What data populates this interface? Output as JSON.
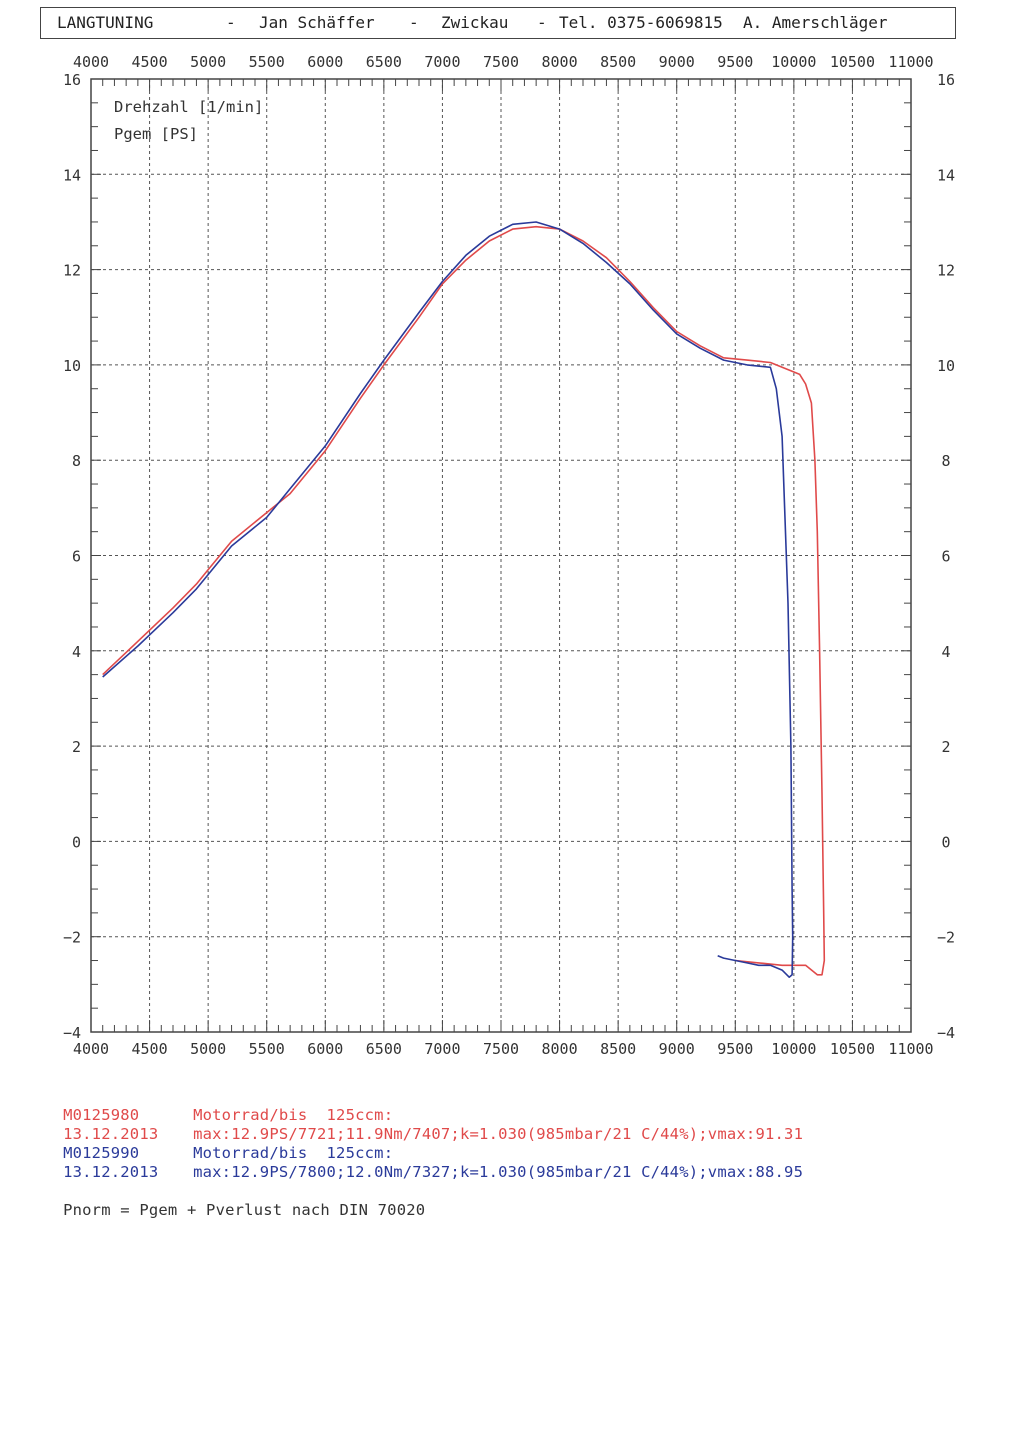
{
  "header": {
    "company": "LANGTUNING",
    "sep1": "-",
    "owner": "Jan Schäffer",
    "sep2": "-",
    "city": "Zwickau",
    "sep3": "-",
    "phone": "Tel. 0375-6069815",
    "operator": "A. Amerschläger"
  },
  "chart_data": {
    "type": "line",
    "legend": [
      "Drehzahl [1/min]",
      "Pgem [PS]"
    ],
    "x_ticks": [
      4000,
      4500,
      5000,
      5500,
      6000,
      6500,
      7000,
      7500,
      8000,
      8500,
      9000,
      9500,
      10000,
      10500,
      11000
    ],
    "y_ticks": [
      16,
      14,
      12,
      10,
      8,
      6,
      4,
      2,
      0,
      -2,
      -4
    ],
    "x_tick_labels": [
      "4000",
      "4500",
      "5000",
      "5500",
      "6000",
      "6500",
      "7000",
      "7500",
      "8000",
      "8500",
      "9000",
      "9500",
      "10000",
      "10500",
      "11000"
    ],
    "y_tick_labels": [
      "16",
      "14",
      "12",
      "10",
      "8",
      "6",
      "4",
      "2",
      "0",
      "−2",
      "−4"
    ],
    "xlim": [
      4000,
      11000
    ],
    "ylim": [
      -4,
      16
    ],
    "grid": true,
    "series": [
      {
        "color": "#e04a4a",
        "points": [
          [
            4100,
            3.5
          ],
          [
            4400,
            4.2
          ],
          [
            4700,
            4.9
          ],
          [
            4900,
            5.4
          ],
          [
            5000,
            5.7
          ],
          [
            5200,
            6.3
          ],
          [
            5500,
            6.9
          ],
          [
            5700,
            7.3
          ],
          [
            6000,
            8.2
          ],
          [
            6300,
            9.3
          ],
          [
            6500,
            10.0
          ],
          [
            6800,
            11.0
          ],
          [
            7000,
            11.7
          ],
          [
            7200,
            12.2
          ],
          [
            7400,
            12.6
          ],
          [
            7600,
            12.85
          ],
          [
            7800,
            12.9
          ],
          [
            8000,
            12.85
          ],
          [
            8200,
            12.6
          ],
          [
            8400,
            12.25
          ],
          [
            8600,
            11.75
          ],
          [
            8800,
            11.2
          ],
          [
            9000,
            10.7
          ],
          [
            9200,
            10.4
          ],
          [
            9400,
            10.15
          ],
          [
            9600,
            10.1
          ],
          [
            9800,
            10.05
          ],
          [
            10000,
            9.85
          ],
          [
            10050,
            9.8
          ],
          [
            10100,
            9.6
          ],
          [
            10150,
            9.2
          ],
          [
            10180,
            8.0
          ],
          [
            10200,
            6.5
          ],
          [
            10220,
            4.0
          ],
          [
            10240,
            1.0
          ],
          [
            10255,
            -1.5
          ],
          [
            10260,
            -2.5
          ],
          [
            10240,
            -2.8
          ],
          [
            10200,
            -2.8
          ],
          [
            10100,
            -2.6
          ],
          [
            9900,
            -2.6
          ],
          [
            9700,
            -2.55
          ],
          [
            9500,
            -2.5
          ]
        ]
      },
      {
        "color": "#2a3a9a",
        "points": [
          [
            4100,
            3.45
          ],
          [
            4400,
            4.1
          ],
          [
            4700,
            4.8
          ],
          [
            4900,
            5.3
          ],
          [
            5000,
            5.6
          ],
          [
            5200,
            6.2
          ],
          [
            5500,
            6.8
          ],
          [
            5700,
            7.4
          ],
          [
            6000,
            8.3
          ],
          [
            6300,
            9.4
          ],
          [
            6500,
            10.1
          ],
          [
            6800,
            11.1
          ],
          [
            7000,
            11.75
          ],
          [
            7200,
            12.3
          ],
          [
            7400,
            12.7
          ],
          [
            7600,
            12.95
          ],
          [
            7800,
            13.0
          ],
          [
            8000,
            12.85
          ],
          [
            8200,
            12.55
          ],
          [
            8400,
            12.15
          ],
          [
            8600,
            11.7
          ],
          [
            8800,
            11.15
          ],
          [
            9000,
            10.65
          ],
          [
            9200,
            10.35
          ],
          [
            9400,
            10.1
          ],
          [
            9600,
            10.0
          ],
          [
            9800,
            9.95
          ],
          [
            9850,
            9.5
          ],
          [
            9900,
            8.5
          ],
          [
            9950,
            5.0
          ],
          [
            9975,
            2.0
          ],
          [
            9985,
            -1.0
          ],
          [
            9990,
            -2.0
          ],
          [
            9985,
            -2.8
          ],
          [
            9960,
            -2.85
          ],
          [
            9900,
            -2.7
          ],
          [
            9800,
            -2.6
          ],
          [
            9700,
            -2.6
          ],
          [
            9600,
            -2.55
          ],
          [
            9500,
            -2.5
          ],
          [
            9400,
            -2.45
          ],
          [
            9350,
            -2.4
          ]
        ]
      }
    ]
  },
  "footer": {
    "line1_id": "M0125980",
    "line1_desc": "Motorrad/bis  125ccm:",
    "line2_date": "13.12.2013",
    "line2_stats": "max:12.9PS/7721;11.9Nm/7407;k=1.030(985mbar/21 C/44%);vmax:91.31",
    "line3_id": "M0125990",
    "line3_desc": "Motorrad/bis  125ccm:",
    "line4_date": "13.12.2013",
    "line4_stats": "max:12.9PS/7800;12.0Nm/7327;k=1.030(985mbar/21 C/44%);vmax:88.95",
    "norm_note": "Pnorm = Pgem + Pverlust nach DIN 70020"
  }
}
